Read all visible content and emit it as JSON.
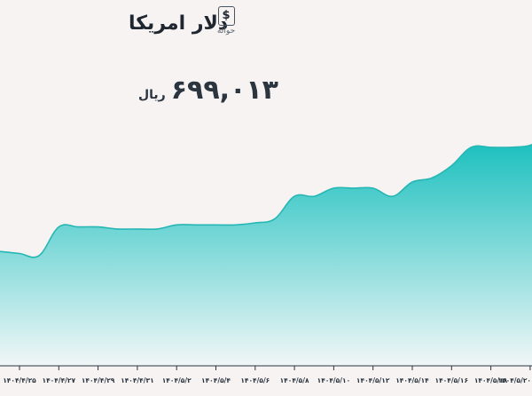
{
  "header": {
    "title": "دلار امریکا",
    "badge_symbol": "$",
    "badge_label": "حواله"
  },
  "price": {
    "value": "۶۹۹,۰۱۳",
    "unit": "ریال"
  },
  "colors": {
    "area_top": "#17bfbd",
    "area_bottom": "#f1f6f7",
    "line": "#26b6b4",
    "background": "#f7f3f2"
  },
  "chart_data": {
    "type": "area",
    "title": "",
    "xlabel": "",
    "ylabel": "",
    "grid": false,
    "legend": "none",
    "tick_labels": [
      "۱۴۰۴/۴/۲۵",
      "۱۴۰۴/۴/۲۷",
      "۱۴۰۴/۴/۲۹",
      "۱۴۰۴/۴/۳۱",
      "۱۴۰۴/۵/۲",
      "۱۴۰۴/۵/۴",
      "۱۴۰۴/۵/۶",
      "۱۴۰۴/۵/۸",
      "۱۴۰۴/۵/۱۰",
      "۱۴۰۴/۵/۱۲",
      "۱۴۰۴/۵/۱۴",
      "۱۴۰۴/۵/۱۶",
      "۱۴۰۴/۵/۱۸",
      "۱۴۰۴/۵/۲۰"
    ],
    "series": [
      {
        "values": [
          [
            -0.5,
            616
          ],
          [
            0,
            615
          ],
          [
            0.5,
            614
          ],
          [
            1,
            628
          ],
          [
            1.5,
            628
          ],
          [
            2,
            628
          ],
          [
            2.5,
            627
          ],
          [
            3,
            627
          ],
          [
            3.5,
            627
          ],
          [
            4,
            629
          ],
          [
            4.5,
            629
          ],
          [
            5,
            629
          ],
          [
            5.5,
            629
          ],
          [
            6,
            630
          ],
          [
            6.5,
            632
          ],
          [
            7,
            643
          ],
          [
            7.5,
            643
          ],
          [
            8,
            647
          ],
          [
            8.5,
            647
          ],
          [
            9,
            647
          ],
          [
            9.5,
            643
          ],
          [
            10,
            650
          ],
          [
            10.5,
            652
          ],
          [
            11,
            658
          ],
          [
            11.5,
            667
          ],
          [
            12,
            667
          ],
          [
            12.5,
            667
          ],
          [
            13,
            668
          ],
          [
            13.3,
            672
          ]
        ]
      }
    ],
    "xlim": [
      -0.5,
      13.3
    ],
    "ylim": [
      560,
      700
    ]
  }
}
